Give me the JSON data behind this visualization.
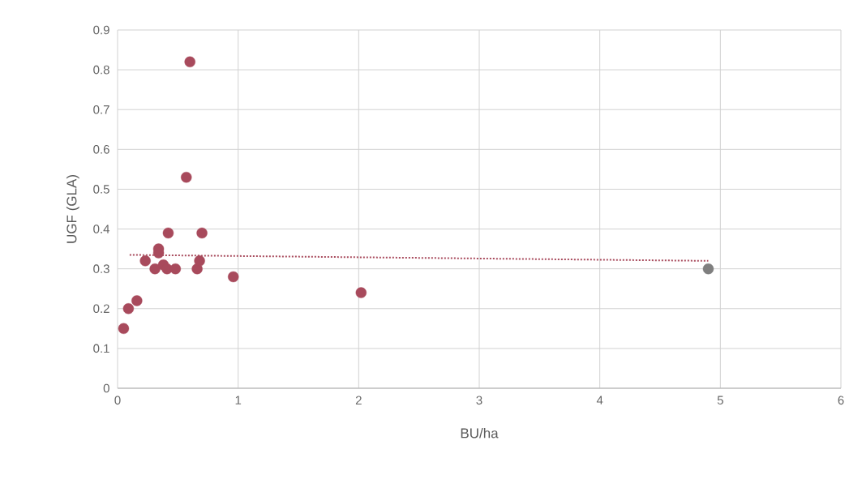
{
  "chart_data": {
    "type": "scatter",
    "xlabel": "BU/ha",
    "ylabel": "UGF (GLA)",
    "series": [
      {
        "x": [
          0.6,
          0.57,
          0.42,
          0.7,
          0.34,
          0.34,
          0.23,
          0.31,
          0.38,
          0.41,
          0.48,
          0.66,
          0.68,
          0.96,
          0.16,
          0.09,
          0.05,
          2.02,
          4.9
        ],
        "values": [
          0.82,
          0.53,
          0.39,
          0.39,
          0.35,
          0.34,
          0.32,
          0.3,
          0.31,
          0.3,
          0.3,
          0.3,
          0.32,
          0.28,
          0.22,
          0.2,
          0.15,
          0.24,
          0.3
        ],
        "colors": [
          "#a84a5c",
          "#a84a5c",
          "#a84a5c",
          "#a84a5c",
          "#a84a5c",
          "#a84a5c",
          "#a84a5c",
          "#a84a5c",
          "#a84a5c",
          "#a84a5c",
          "#a84a5c",
          "#a84a5c",
          "#a84a5c",
          "#a84a5c",
          "#a84a5c",
          "#a84a5c",
          "#a84a5c",
          "#a84a5c",
          "#7f7f7f"
        ],
        "marker": "circle"
      },
      {
        "type": "line",
        "x": [
          0.1,
          4.9
        ],
        "values": [
          0.335,
          0.32
        ],
        "color": "#a84a5c",
        "line_style": "dotted",
        "marker": "none"
      }
    ],
    "xlim": [
      0,
      6
    ],
    "xticks": [
      0,
      1,
      2,
      3,
      4,
      5,
      6
    ],
    "ylim": [
      0,
      0.9
    ],
    "yticks": [
      0,
      0.1,
      0.2,
      0.3,
      0.4,
      0.5,
      0.6,
      0.7,
      0.8,
      0.9
    ],
    "grid": true
  }
}
